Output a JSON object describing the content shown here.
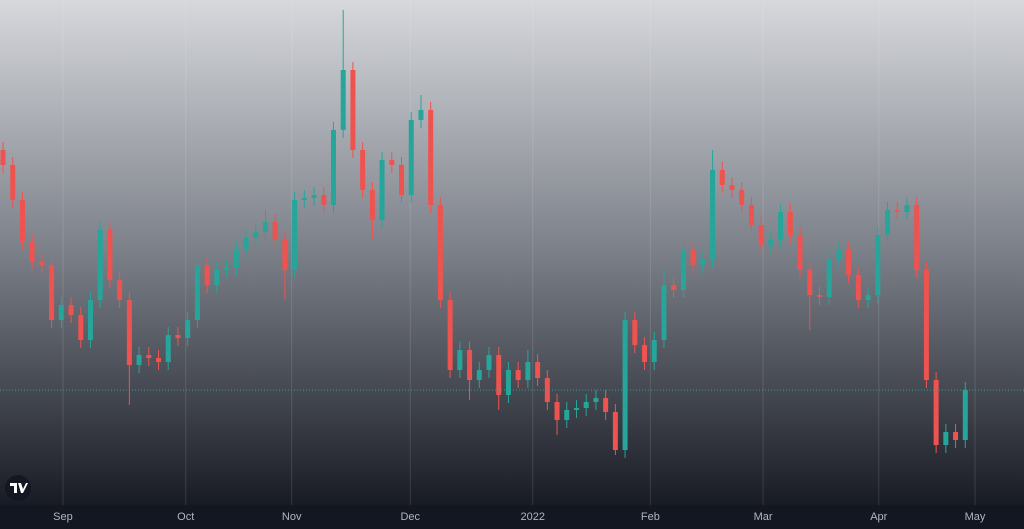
{
  "chart_data": {
    "type": "candlestick",
    "up_color": "#26a69a",
    "down_color": "#ef5350",
    "ylim": [
      0,
      505
    ],
    "xlim": [
      -0.3,
      102
    ],
    "xticks": [
      {
        "value": 6.17,
        "label": "Sep"
      },
      {
        "value": 18.8,
        "label": "Oct"
      },
      {
        "value": 29.7,
        "label": "Nov"
      },
      {
        "value": 41.9,
        "label": "Dec"
      },
      {
        "value": 54.5,
        "label": "2022"
      },
      {
        "value": 66.6,
        "label": "Feb"
      },
      {
        "value": 78.2,
        "label": "Mar"
      },
      {
        "value": 90.1,
        "label": "Apr"
      },
      {
        "value": 100.0,
        "label": "May"
      }
    ],
    "grid": true,
    "open": [
      355,
      340,
      305,
      263,
      243,
      240,
      185,
      200,
      190,
      165,
      205,
      275,
      225,
      205,
      140,
      150,
      147,
      143,
      170,
      167,
      185,
      240,
      220,
      235,
      238,
      255,
      267,
      273,
      283,
      265,
      235,
      305,
      307,
      310,
      300,
      375,
      435,
      355,
      315,
      285,
      345,
      340,
      310,
      385,
      395,
      300,
      205,
      135,
      155,
      125,
      135,
      150,
      110,
      135,
      125,
      143,
      127,
      103,
      85,
      95,
      97,
      103,
      107,
      93,
      55,
      185,
      160,
      143,
      165,
      220,
      215,
      255,
      240,
      245,
      335,
      320,
      315,
      300,
      280,
      260,
      265,
      293,
      270,
      235,
      210,
      208,
      245,
      255,
      230,
      205,
      210,
      270,
      295,
      293,
      300,
      235,
      125,
      60,
      73,
      65
    ],
    "high": [
      363,
      348,
      313,
      271,
      251,
      248,
      208,
      208,
      198,
      213,
      283,
      283,
      233,
      213,
      158,
      158,
      155,
      178,
      178,
      193,
      248,
      248,
      243,
      246,
      263,
      275,
      281,
      295,
      291,
      273,
      313,
      315,
      318,
      318,
      383,
      495,
      443,
      363,
      323,
      353,
      353,
      348,
      393,
      410,
      403,
      308,
      213,
      163,
      163,
      143,
      158,
      158,
      143,
      143,
      155,
      151,
      135,
      111,
      103,
      105,
      111,
      115,
      115,
      101,
      193,
      193,
      168,
      173,
      235,
      228,
      263,
      263,
      253,
      355,
      343,
      328,
      323,
      308,
      288,
      273,
      301,
      301,
      278,
      243,
      218,
      253,
      263,
      263,
      238,
      218,
      278,
      303,
      303,
      308,
      308,
      243,
      133,
      81,
      81,
      123
    ],
    "low": [
      332,
      297,
      255,
      235,
      232,
      177,
      177,
      182,
      157,
      157,
      197,
      217,
      197,
      100,
      132,
      139,
      135,
      135,
      159,
      159,
      177,
      212,
      212,
      227,
      230,
      247,
      259,
      265,
      257,
      205,
      227,
      297,
      299,
      292,
      292,
      367,
      347,
      307,
      265,
      277,
      332,
      302,
      302,
      377,
      292,
      197,
      127,
      127,
      105,
      117,
      127,
      95,
      102,
      117,
      117,
      119,
      95,
      70,
      77,
      87,
      89,
      95,
      85,
      50,
      47,
      152,
      135,
      135,
      157,
      207,
      207,
      232,
      232,
      237,
      312,
      307,
      292,
      272,
      252,
      252,
      257,
      262,
      227,
      175,
      200,
      200,
      237,
      222,
      197,
      197,
      202,
      262,
      285,
      285,
      227,
      117,
      52,
      52,
      57,
      57
    ],
    "close": [
      340,
      305,
      263,
      243,
      240,
      185,
      200,
      190,
      165,
      205,
      275,
      225,
      205,
      140,
      150,
      147,
      143,
      170,
      167,
      185,
      240,
      220,
      235,
      238,
      255,
      267,
      273,
      283,
      265,
      235,
      305,
      307,
      310,
      300,
      375,
      435,
      355,
      315,
      285,
      345,
      340,
      310,
      385,
      395,
      300,
      205,
      135,
      155,
      125,
      135,
      150,
      110,
      135,
      125,
      143,
      127,
      103,
      85,
      95,
      97,
      103,
      107,
      93,
      55,
      185,
      160,
      143,
      165,
      220,
      215,
      255,
      240,
      245,
      335,
      320,
      315,
      300,
      280,
      260,
      265,
      293,
      270,
      235,
      210,
      208,
      245,
      255,
      230,
      205,
      210,
      270,
      295,
      293,
      300,
      235,
      125,
      60,
      73,
      65,
      115
    ]
  }
}
